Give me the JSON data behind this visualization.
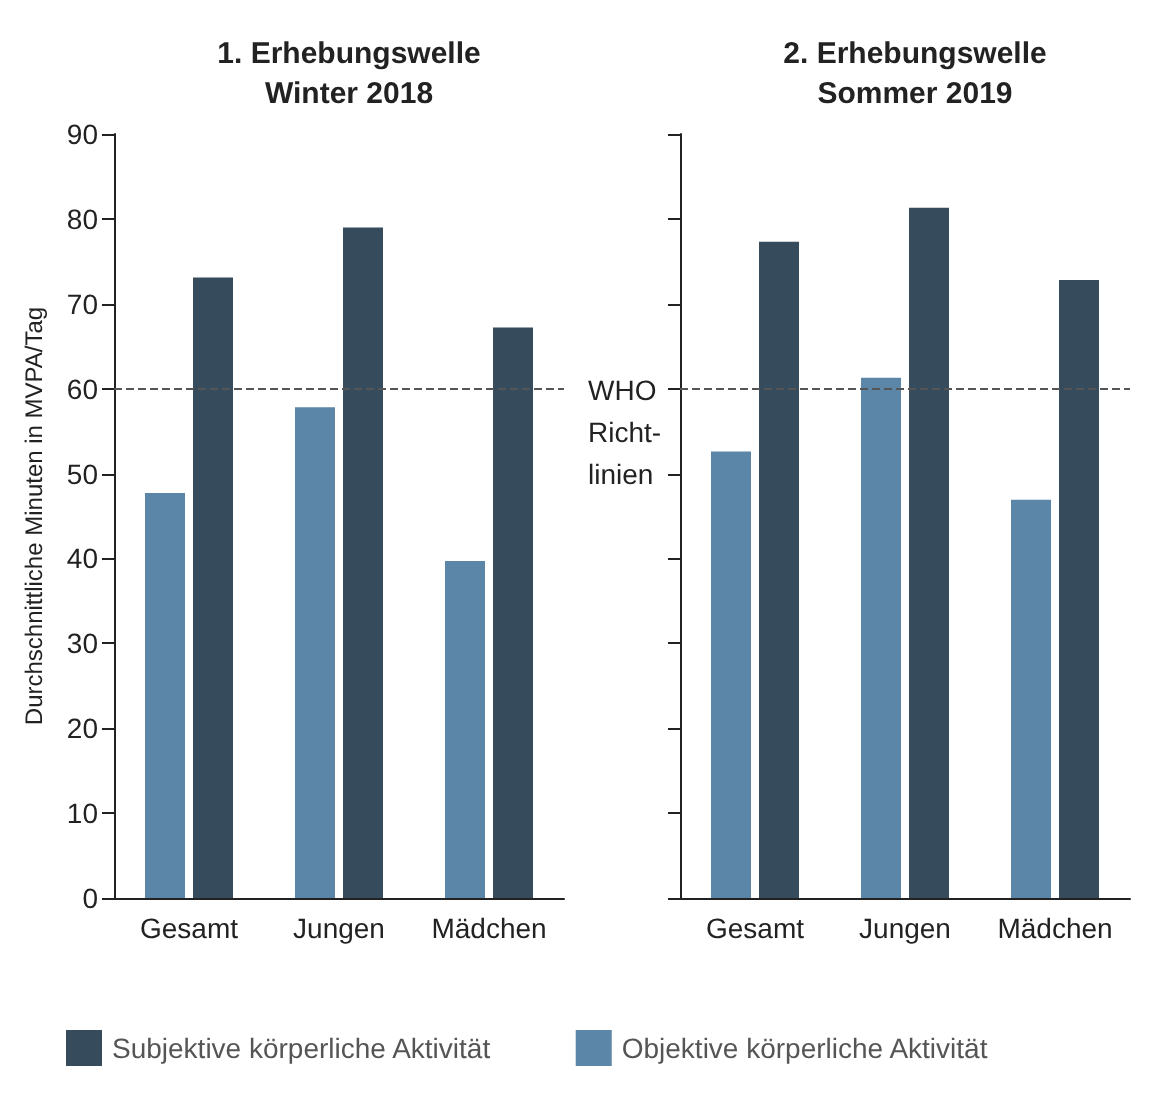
{
  "chart_data": [
    {
      "type": "bar",
      "title": "1. Erhebungswelle\nWinter 2018",
      "ylabel": "Durchschnittliche Minuten in MVPA/Tag",
      "categories": [
        "Gesamt",
        "Jungen",
        "Mädchen"
      ],
      "series": [
        {
          "name": "Objektive körperliche Aktivität",
          "color": "#5b86a8",
          "values": [
            47.7,
            57.8,
            39.7
          ]
        },
        {
          "name": "Subjektive körperliche Aktivität",
          "color": "#364b5c",
          "values": [
            73.1,
            79,
            67.2
          ]
        }
      ],
      "ylim": [
        0,
        90
      ],
      "yticks": [
        0,
        10,
        20,
        30,
        40,
        50,
        60,
        70,
        80,
        90
      ],
      "grid": false,
      "legend": "bottom",
      "ref_lines": [
        {
          "axis": "y",
          "value": 60,
          "label": "WHO\nRicht-\nlinien",
          "line_style": "dashed"
        }
      ]
    },
    {
      "type": "bar",
      "title": "2. Erhebungswelle\nSommer 2019",
      "categories": [
        "Gesamt",
        "Jungen",
        "Mädchen"
      ],
      "series": [
        {
          "color": "#5b86a8",
          "values": [
            52.6,
            61.3,
            46.9
          ]
        },
        {
          "color": "#364b5c",
          "values": [
            77.3,
            81.3,
            72.8
          ]
        }
      ],
      "ylim": [
        0,
        90
      ],
      "yticks": [
        0,
        10,
        20,
        30,
        40,
        50,
        60,
        70,
        80,
        90
      ],
      "grid": false,
      "tick_labels": "x",
      "ref_lines": [
        {
          "axis": "y",
          "value": 60,
          "line_style": "dashed"
        }
      ]
    }
  ]
}
